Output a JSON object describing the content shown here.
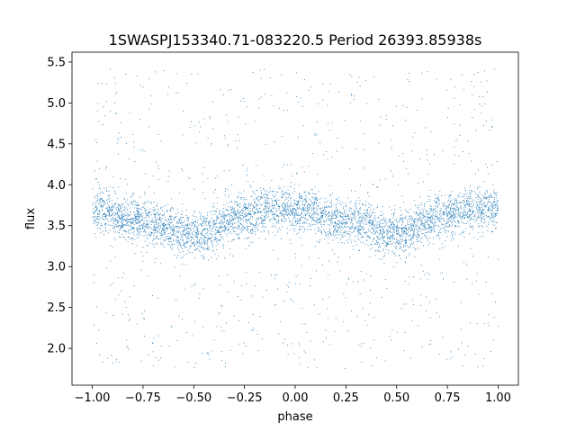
{
  "chart_data": {
    "type": "scatter",
    "title": "1SWASPJ153340.71-083220.5 Period 26393.85938s",
    "xlabel": "phase",
    "ylabel": "flux",
    "xlim": [
      -1.1,
      1.1
    ],
    "ylim": [
      1.55,
      5.62
    ],
    "x_ticks": [
      -1.0,
      -0.75,
      -0.5,
      -0.25,
      0.0,
      0.25,
      0.5,
      0.75,
      1.0
    ],
    "x_tick_labels": [
      "−1.00",
      "−0.75",
      "−0.50",
      "−0.25",
      "0.00",
      "0.25",
      "0.50",
      "0.75",
      "1.00"
    ],
    "y_ticks": [
      2.0,
      2.5,
      3.0,
      3.5,
      4.0,
      4.5,
      5.0,
      5.5
    ],
    "y_tick_labels": [
      "2.0",
      "2.5",
      "3.0",
      "3.5",
      "4.0",
      "4.5",
      "5.0",
      "5.5"
    ],
    "grid": false,
    "legend": "none",
    "marker_color": "#1f77b4",
    "series": [
      {
        "phase_range": [
          -1.0,
          1.0
        ],
        "flux_envelope": [
          {
            "phase": -1.0,
            "flux": 3.7
          },
          {
            "phase": -0.75,
            "flux": 3.55
          },
          {
            "phase": -0.5,
            "flux": 3.4
          },
          {
            "phase": -0.25,
            "flux": 3.62
          },
          {
            "phase": -0.1,
            "flux": 3.72
          },
          {
            "phase": 0.0,
            "flux": 3.7
          },
          {
            "phase": 0.25,
            "flux": 3.55
          },
          {
            "phase": 0.5,
            "flux": 3.4
          },
          {
            "phase": 0.75,
            "flux": 3.62
          },
          {
            "phase": 0.9,
            "flux": 3.72
          },
          {
            "phase": 1.0,
            "flux": 3.7
          }
        ],
        "flux_outlier_range": [
          1.75,
          5.42
        ]
      }
    ]
  }
}
